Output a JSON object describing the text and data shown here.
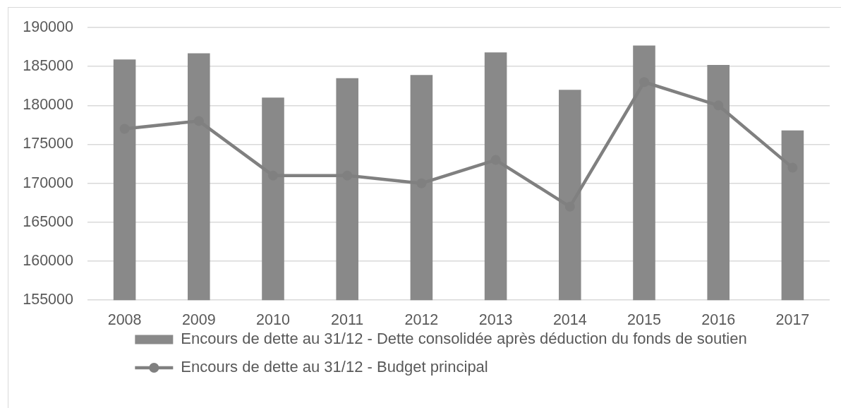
{
  "chart_data": {
    "type": "bar",
    "categories": [
      "2008",
      "2009",
      "2010",
      "2011",
      "2012",
      "2013",
      "2014",
      "2015",
      "2016",
      "2017"
    ],
    "series": [
      {
        "name": "Encours de dette au 31/12 - Dette consolidée après déduction du fonds de soutien",
        "color": "#898989",
        "values": [
          185900,
          186700,
          181000,
          183500,
          183900,
          186800,
          182000,
          187700,
          185200,
          176800
        ]
      },
      {
        "name": "Encours de dette au 31/12 - Budget principal",
        "type": "line",
        "color": "#808080",
        "values": [
          177000,
          178000,
          171000,
          171000,
          170000,
          173000,
          167000,
          183000,
          180000,
          172000
        ]
      }
    ],
    "ylim": [
      155000,
      190000
    ],
    "yticks": [
      155000,
      160000,
      165000,
      170000,
      175000,
      180000,
      185000,
      190000
    ],
    "grid": "y",
    "legend": "bottom",
    "marker": "circle"
  }
}
